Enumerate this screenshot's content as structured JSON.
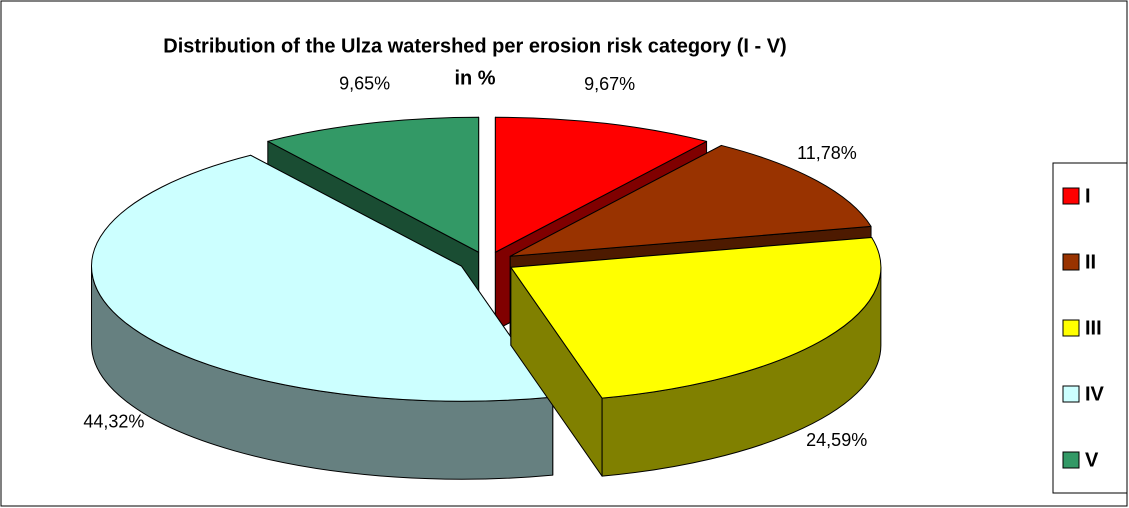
{
  "chart_data": {
    "type": "pie",
    "title": [
      "Distribution of the Ulza watershed per erosion risk category (I - V)",
      "in %"
    ],
    "categories": [
      "I",
      "II",
      "III",
      "IV",
      "V"
    ],
    "values": [
      9.67,
      11.78,
      24.59,
      44.32,
      9.65
    ],
    "value_labels": [
      "9,67%",
      "11,78%",
      "24,59%",
      "44,32%",
      "9,65%"
    ],
    "colors": [
      "#ff0000",
      "#993300",
      "#ffff00",
      "#ccffff",
      "#339966"
    ],
    "legend": "right"
  }
}
